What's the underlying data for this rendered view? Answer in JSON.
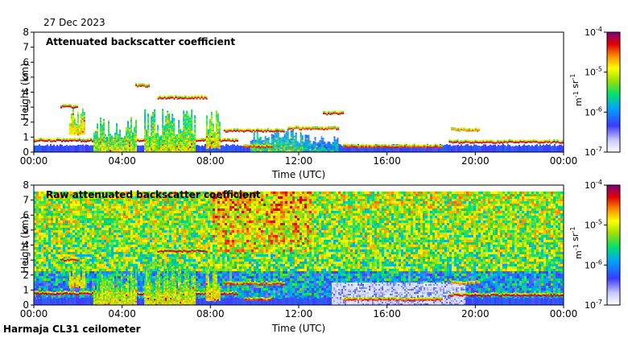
{
  "date_label": "27 Dec 2023",
  "footer": "Harmaja CL31 ceilometer",
  "colors": {
    "ground_blue": "#5a5af0",
    "layer_red": "#d42a10",
    "green": "#3cc83c",
    "yellow": "#f0e020",
    "noise_white": "#f4f4f4"
  },
  "chart_data": [
    {
      "type": "heatmap",
      "title": "Attenuated backscatter coefficient",
      "xlabel": "Time (UTC)",
      "ylabel": "Height (km)",
      "xlim": [
        0,
        24
      ],
      "ylim": [
        0,
        8
      ],
      "x_tick_values": [
        0,
        4,
        8,
        12,
        16,
        20,
        24
      ],
      "x_tick_labels": [
        "00:00",
        "04:00",
        "08:00",
        "12:00",
        "16:00",
        "20:00",
        "00:00"
      ],
      "y_tick_values": [
        0,
        1,
        2,
        3,
        4,
        5,
        6,
        7,
        8
      ],
      "y_tick_labels": [
        "0",
        "1",
        "2",
        "3",
        "4",
        "5",
        "6",
        "7",
        "8"
      ],
      "colorbar": {
        "scale": "log",
        "range": [
          1e-07,
          0.0001
        ],
        "tick_values": [
          1e-07,
          1e-06,
          1e-05,
          0.0001
        ],
        "tick_labels": [
          "10-7",
          "10-6",
          "10-5",
          "10-4"
        ],
        "unit": "m-1 sr-1"
      },
      "background_noise": false,
      "features": [
        {
          "kind": "band",
          "t0": 0,
          "t1": 24,
          "h0": 0,
          "h1": 0.55,
          "intensity": 0.15
        },
        {
          "kind": "line",
          "t0": 0,
          "t1": 9.2,
          "h": 0.75,
          "intensity": 0.95
        },
        {
          "kind": "line",
          "t0": 18.8,
          "t1": 24,
          "h": 0.65,
          "intensity": 0.95
        },
        {
          "kind": "line",
          "t0": 14,
          "t1": 18.5,
          "h": 0.35,
          "intensity": 0.9
        },
        {
          "kind": "column",
          "t0": 1.6,
          "t1": 2.3,
          "h0": 1.2,
          "h1": 3.0,
          "intensity": 0.65
        },
        {
          "kind": "column",
          "t0": 2.7,
          "t1": 4.6,
          "h0": 0.05,
          "h1": 2.4,
          "intensity": 0.55
        },
        {
          "kind": "column",
          "t0": 5.0,
          "t1": 7.3,
          "h0": 0.05,
          "h1": 2.9,
          "intensity": 0.55
        },
        {
          "kind": "column",
          "t0": 7.8,
          "t1": 8.4,
          "h0": 0.3,
          "h1": 2.9,
          "intensity": 0.6
        },
        {
          "kind": "column",
          "t0": 9.8,
          "t1": 12.2,
          "h0": 0.05,
          "h1": 1.6,
          "intensity": 0.45
        },
        {
          "kind": "column",
          "t0": 12.2,
          "t1": 13.8,
          "h0": 0.1,
          "h1": 1.2,
          "intensity": 0.35
        },
        {
          "kind": "line",
          "t0": 1.2,
          "t1": 2.0,
          "h": 3.0,
          "intensity": 0.95
        },
        {
          "kind": "line",
          "t0": 5.6,
          "t1": 7.8,
          "h": 3.6,
          "intensity": 0.95
        },
        {
          "kind": "line",
          "t0": 4.6,
          "t1": 5.2,
          "h": 4.4,
          "intensity": 0.9
        },
        {
          "kind": "line",
          "t0": 8.6,
          "t1": 11.3,
          "h": 1.4,
          "intensity": 0.95
        },
        {
          "kind": "line",
          "t0": 11.5,
          "t1": 13.8,
          "h": 1.55,
          "intensity": 0.9
        },
        {
          "kind": "line",
          "t0": 13.1,
          "t1": 14.0,
          "h": 2.55,
          "intensity": 0.95
        },
        {
          "kind": "line",
          "t0": 18.9,
          "t1": 20.2,
          "h": 1.45,
          "intensity": 0.85
        },
        {
          "kind": "line",
          "t0": 9.5,
          "t1": 10.8,
          "h": 0.35,
          "intensity": 0.9
        }
      ]
    },
    {
      "type": "heatmap",
      "title": "Raw attenuated backscatter coefficient",
      "xlabel": "Time (UTC)",
      "ylabel": "Height (km)",
      "xlim": [
        0,
        24
      ],
      "ylim": [
        0,
        8
      ],
      "x_tick_values": [
        0,
        4,
        8,
        12,
        16,
        20,
        24
      ],
      "x_tick_labels": [
        "00:00",
        "04:00",
        "08:00",
        "12:00",
        "16:00",
        "20:00",
        "00:00"
      ],
      "y_tick_values": [
        0,
        1,
        2,
        3,
        4,
        5,
        6,
        7,
        8
      ],
      "y_tick_labels": [
        "0",
        "1",
        "2",
        "3",
        "4",
        "5",
        "6",
        "7",
        "8"
      ],
      "colorbar": {
        "scale": "log",
        "range": [
          1e-07,
          0.0001
        ],
        "tick_values": [
          1e-07,
          1e-06,
          1e-05,
          0.0001
        ],
        "tick_labels": [
          "10-7",
          "10-6",
          "10-5",
          "10-4"
        ],
        "unit": "m-1 sr-1"
      },
      "background_noise": true,
      "features": [
        {
          "kind": "band",
          "t0": 0,
          "t1": 24,
          "h0": 0,
          "h1": 0.55,
          "intensity": 0.15
        },
        {
          "kind": "whitenoise",
          "t0": 13.5,
          "t1": 19.5,
          "h0": 0.05,
          "h1": 1.5
        },
        {
          "kind": "line",
          "t0": 0,
          "t1": 9.2,
          "h": 0.75,
          "intensity": 0.95
        },
        {
          "kind": "line",
          "t0": 18.8,
          "t1": 24,
          "h": 0.65,
          "intensity": 0.95
        },
        {
          "kind": "line",
          "t0": 14,
          "t1": 18.5,
          "h": 0.35,
          "intensity": 0.9
        },
        {
          "kind": "column",
          "t0": 1.6,
          "t1": 2.3,
          "h0": 1.2,
          "h1": 3.0,
          "intensity": 0.65
        },
        {
          "kind": "column",
          "t0": 2.7,
          "t1": 4.6,
          "h0": 0.05,
          "h1": 2.4,
          "intensity": 0.6
        },
        {
          "kind": "column",
          "t0": 5.0,
          "t1": 7.3,
          "h0": 0.05,
          "h1": 2.9,
          "intensity": 0.6
        },
        {
          "kind": "column",
          "t0": 7.8,
          "t1": 8.4,
          "h0": 0.3,
          "h1": 2.9,
          "intensity": 0.65
        },
        {
          "kind": "line",
          "t0": 1.2,
          "t1": 2.0,
          "h": 3.0,
          "intensity": 0.95
        },
        {
          "kind": "line",
          "t0": 5.6,
          "t1": 7.8,
          "h": 3.6,
          "intensity": 0.95
        },
        {
          "kind": "line",
          "t0": 8.6,
          "t1": 11.3,
          "h": 1.4,
          "intensity": 0.9
        },
        {
          "kind": "line",
          "t0": 18.9,
          "t1": 20.2,
          "h": 1.45,
          "intensity": 0.85
        },
        {
          "kind": "line",
          "t0": 9.5,
          "t1": 10.8,
          "h": 0.35,
          "intensity": 0.9
        }
      ]
    }
  ]
}
